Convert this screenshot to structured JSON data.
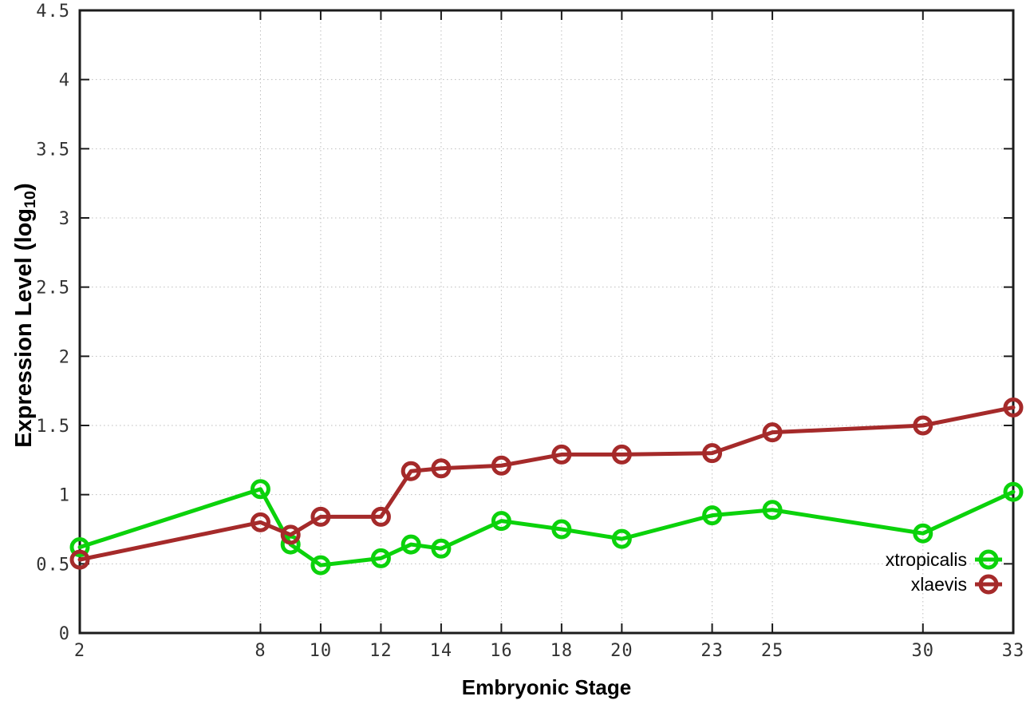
{
  "figure": {
    "background": "#ffffff"
  },
  "colors": {
    "border": "#1c1c1c",
    "grid": "#bdbdbd",
    "tick_label": "#333333",
    "legend_text": "#000000"
  },
  "ylabel_parts": {
    "pre": "Expression Level (log",
    "sub": "10",
    "post": ")"
  },
  "chart_data": {
    "type": "line",
    "title": "",
    "xlabel": "Embryonic Stage",
    "ylabel": "Expression Level (log10)",
    "xlim": [
      2,
      33
    ],
    "ylim": [
      0,
      4.5
    ],
    "grid": true,
    "grid_style": "dotted",
    "legend_position": "bottom-right-inside",
    "x_ticks": [
      2,
      8,
      10,
      12,
      14,
      16,
      18,
      20,
      23,
      25,
      30,
      33
    ],
    "x_tick_labels": [
      "2",
      "8",
      "10",
      "12",
      "14",
      "16",
      "18",
      "20",
      "23",
      "25",
      "30",
      "33"
    ],
    "y_ticks": [
      0,
      0.5,
      1,
      1.5,
      2,
      2.5,
      3,
      3.5,
      4,
      4.5
    ],
    "y_tick_labels": [
      "0",
      "0.5",
      "1",
      "1.5",
      "2",
      "2.5",
      "3",
      "3.5",
      "4",
      "4.5"
    ],
    "x": [
      2,
      8,
      9,
      10,
      12,
      13,
      14,
      16,
      18,
      20,
      23,
      25,
      30,
      33
    ],
    "series": [
      {
        "name": "xtropicalis",
        "color": "#0bd20b",
        "marker": "open-circle",
        "values": [
          0.62,
          1.04,
          0.64,
          0.49,
          0.54,
          0.64,
          0.61,
          0.81,
          0.75,
          0.68,
          0.85,
          0.89,
          0.72,
          1.02
        ]
      },
      {
        "name": "xlaevis",
        "color": "#a52a2a",
        "marker": "open-circle",
        "values": [
          0.53,
          0.8,
          0.71,
          0.84,
          0.84,
          1.17,
          1.19,
          1.21,
          1.29,
          1.29,
          1.3,
          1.45,
          1.5,
          1.63
        ]
      }
    ]
  }
}
